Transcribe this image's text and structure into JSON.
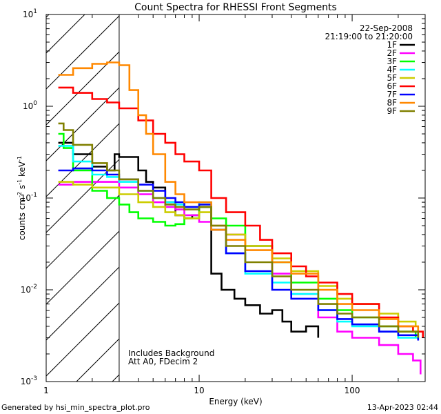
{
  "chart_data": {
    "type": "line",
    "title": "Count Spectra for RHESSI Front Segments",
    "xlabel": "Energy (keV)",
    "ylabel": "counts cm-2 s-1 keV-1",
    "xscale": "log",
    "yscale": "log",
    "xlim": [
      1,
      300
    ],
    "ylim": [
      0.001,
      10
    ],
    "x_ticks": [
      {
        "value": 1,
        "label": "1"
      },
      {
        "value": 10,
        "label": "10"
      },
      {
        "value": 100,
        "label": "100"
      }
    ],
    "y_ticks": [
      {
        "value": 10,
        "base": "10",
        "exp": "1"
      },
      {
        "value": 1,
        "base": "10",
        "exp": "0"
      },
      {
        "value": 0.1,
        "base": "10",
        "exp": "-1"
      },
      {
        "value": 0.01,
        "base": "10",
        "exp": "-2"
      },
      {
        "value": 0.001,
        "base": "10",
        "exp": "-3"
      }
    ],
    "hatched_region_max_energy": 3,
    "date": "22-Sep-2008",
    "time_range": "21:19:00 to 21:20:00",
    "annotations": [
      "Includes Background",
      "Att A0, FDecim 2"
    ],
    "series": [
      {
        "name": "1F",
        "color": "#000000",
        "points": [
          [
            1.2,
            0.4
          ],
          [
            1.5,
            0.3
          ],
          [
            2.0,
            0.22
          ],
          [
            2.5,
            0.2
          ],
          [
            2.8,
            0.3
          ],
          [
            3.0,
            0.28
          ],
          [
            4.0,
            0.2
          ],
          [
            4.5,
            0.15
          ],
          [
            5.0,
            0.13
          ],
          [
            6.0,
            0.09
          ],
          [
            7.0,
            0.065
          ],
          [
            8.0,
            0.06
          ],
          [
            9.0,
            0.065
          ],
          [
            10.0,
            0.08
          ],
          [
            12.0,
            0.015
          ],
          [
            14.0,
            0.01
          ],
          [
            17.0,
            0.008
          ],
          [
            20.0,
            0.0068
          ],
          [
            25.0,
            0.0055
          ],
          [
            30.0,
            0.006
          ],
          [
            35.0,
            0.0045
          ],
          [
            40.0,
            0.0035
          ],
          [
            50.0,
            0.004
          ],
          [
            60.0,
            0.003
          ]
        ]
      },
      {
        "name": "2F",
        "color": "#ff00ff",
        "points": [
          [
            1.2,
            0.14
          ],
          [
            1.5,
            0.15
          ],
          [
            2.0,
            0.15
          ],
          [
            3.0,
            0.13
          ],
          [
            4.0,
            0.11
          ],
          [
            5.0,
            0.09
          ],
          [
            6.0,
            0.08
          ],
          [
            7.0,
            0.075
          ],
          [
            8.0,
            0.065
          ],
          [
            10.0,
            0.055
          ],
          [
            12.0,
            0.05
          ],
          [
            15.0,
            0.04
          ],
          [
            20.0,
            0.03
          ],
          [
            30.0,
            0.015
          ],
          [
            40.0,
            0.009
          ],
          [
            60.0,
            0.005
          ],
          [
            80.0,
            0.0035
          ],
          [
            100.0,
            0.003
          ],
          [
            150.0,
            0.0025
          ],
          [
            200.0,
            0.002
          ],
          [
            250.0,
            0.0017
          ],
          [
            280.0,
            0.0012
          ]
        ]
      },
      {
        "name": "3F",
        "color": "#00ff00",
        "points": [
          [
            1.2,
            0.5
          ],
          [
            1.3,
            0.35
          ],
          [
            1.5,
            0.2
          ],
          [
            2.0,
            0.12
          ],
          [
            2.5,
            0.1
          ],
          [
            3.0,
            0.085
          ],
          [
            3.5,
            0.07
          ],
          [
            4.0,
            0.06
          ],
          [
            5.0,
            0.055
          ],
          [
            6.0,
            0.05
          ],
          [
            7.0,
            0.052
          ],
          [
            8.0,
            0.06
          ],
          [
            10.0,
            0.08
          ],
          [
            12.0,
            0.06
          ],
          [
            15.0,
            0.05
          ],
          [
            20.0,
            0.03
          ],
          [
            30.0,
            0.02
          ],
          [
            40.0,
            0.012
          ],
          [
            60.0,
            0.008
          ],
          [
            80.0,
            0.006
          ],
          [
            100.0,
            0.005
          ],
          [
            150.0,
            0.004
          ],
          [
            200.0,
            0.0035
          ],
          [
            260.0,
            0.003
          ]
        ]
      },
      {
        "name": "4F",
        "color": "#00ffff",
        "points": [
          [
            1.2,
            0.37
          ],
          [
            1.5,
            0.25
          ],
          [
            2.0,
            0.18
          ],
          [
            2.5,
            0.17
          ],
          [
            3.0,
            0.15
          ],
          [
            4.0,
            0.12
          ],
          [
            5.0,
            0.1
          ],
          [
            6.0,
            0.09
          ],
          [
            7.0,
            0.085
          ],
          [
            8.0,
            0.08
          ],
          [
            10.0,
            0.09
          ],
          [
            12.0,
            0.045
          ],
          [
            15.0,
            0.025
          ],
          [
            20.0,
            0.015
          ],
          [
            30.0,
            0.012
          ],
          [
            40.0,
            0.009
          ],
          [
            60.0,
            0.006
          ],
          [
            80.0,
            0.0045
          ],
          [
            100.0,
            0.004
          ],
          [
            150.0,
            0.0035
          ],
          [
            200.0,
            0.003
          ],
          [
            270.0,
            0.0028
          ]
        ]
      },
      {
        "name": "5F",
        "color": "#cccc00",
        "points": [
          [
            1.2,
            0.15
          ],
          [
            1.5,
            0.14
          ],
          [
            2.0,
            0.13
          ],
          [
            3.0,
            0.11
          ],
          [
            4.0,
            0.09
          ],
          [
            5.0,
            0.08
          ],
          [
            6.0,
            0.07
          ],
          [
            7.0,
            0.065
          ],
          [
            8.0,
            0.06
          ],
          [
            10.0,
            0.07
          ],
          [
            12.0,
            0.05
          ],
          [
            15.0,
            0.04
          ],
          [
            20.0,
            0.03
          ],
          [
            30.0,
            0.022
          ],
          [
            40.0,
            0.016
          ],
          [
            60.0,
            0.011
          ],
          [
            80.0,
            0.008
          ],
          [
            100.0,
            0.007
          ],
          [
            150.0,
            0.0055
          ],
          [
            200.0,
            0.0045
          ],
          [
            260.0,
            0.004
          ]
        ]
      },
      {
        "name": "6F",
        "color": "#ff0000",
        "points": [
          [
            1.2,
            1.6
          ],
          [
            1.5,
            1.4
          ],
          [
            2.0,
            1.2
          ],
          [
            2.5,
            1.1
          ],
          [
            3.0,
            0.95
          ],
          [
            4.0,
            0.7
          ],
          [
            5.0,
            0.5
          ],
          [
            6.0,
            0.4
          ],
          [
            7.0,
            0.3
          ],
          [
            8.0,
            0.25
          ],
          [
            10.0,
            0.2
          ],
          [
            12.0,
            0.1
          ],
          [
            15.0,
            0.07
          ],
          [
            20.0,
            0.05
          ],
          [
            25.0,
            0.035
          ],
          [
            30.0,
            0.025
          ],
          [
            40.0,
            0.018
          ],
          [
            50.0,
            0.014
          ],
          [
            60.0,
            0.012
          ],
          [
            80.0,
            0.009
          ],
          [
            100.0,
            0.007
          ],
          [
            150.0,
            0.005
          ],
          [
            200.0,
            0.004
          ],
          [
            250.0,
            0.0035
          ],
          [
            290.0,
            0.003
          ]
        ]
      },
      {
        "name": "7F",
        "color": "#0000ff",
        "points": [
          [
            1.2,
            0.2
          ],
          [
            1.5,
            0.21
          ],
          [
            2.0,
            0.2
          ],
          [
            2.5,
            0.18
          ],
          [
            3.0,
            0.16
          ],
          [
            4.0,
            0.14
          ],
          [
            5.0,
            0.12
          ],
          [
            6.0,
            0.1
          ],
          [
            7.0,
            0.09
          ],
          [
            8.0,
            0.08
          ],
          [
            10.0,
            0.085
          ],
          [
            12.0,
            0.045
          ],
          [
            15.0,
            0.025
          ],
          [
            20.0,
            0.016
          ],
          [
            30.0,
            0.01
          ],
          [
            40.0,
            0.008
          ],
          [
            60.0,
            0.006
          ],
          [
            80.0,
            0.0048
          ],
          [
            100.0,
            0.0042
          ],
          [
            150.0,
            0.0035
          ],
          [
            200.0,
            0.0032
          ],
          [
            270.0,
            0.0028
          ]
        ]
      },
      {
        "name": "8F",
        "color": "#ff8800",
        "points": [
          [
            1.2,
            2.2
          ],
          [
            1.5,
            2.6
          ],
          [
            2.0,
            2.9
          ],
          [
            2.5,
            3.0
          ],
          [
            3.0,
            2.8
          ],
          [
            3.5,
            1.5
          ],
          [
            4.0,
            0.8
          ],
          [
            4.5,
            0.5
          ],
          [
            5.0,
            0.3
          ],
          [
            6.0,
            0.15
          ],
          [
            7.0,
            0.11
          ],
          [
            8.0,
            0.09
          ],
          [
            10.0,
            0.09
          ],
          [
            12.0,
            0.045
          ],
          [
            15.0,
            0.035
          ],
          [
            20.0,
            0.027
          ],
          [
            30.0,
            0.02
          ],
          [
            40.0,
            0.015
          ],
          [
            60.0,
            0.01
          ],
          [
            80.0,
            0.007
          ],
          [
            100.0,
            0.006
          ],
          [
            150.0,
            0.0048
          ],
          [
            200.0,
            0.004
          ],
          [
            270.0,
            0.0035
          ]
        ]
      },
      {
        "name": "9F",
        "color": "#808000",
        "points": [
          [
            1.2,
            0.65
          ],
          [
            1.3,
            0.55
          ],
          [
            1.5,
            0.38
          ],
          [
            2.0,
            0.24
          ],
          [
            2.5,
            0.2
          ],
          [
            3.0,
            0.16
          ],
          [
            4.0,
            0.12
          ],
          [
            5.0,
            0.1
          ],
          [
            6.0,
            0.085
          ],
          [
            7.0,
            0.08
          ],
          [
            8.0,
            0.075
          ],
          [
            10.0,
            0.08
          ],
          [
            12.0,
            0.05
          ],
          [
            15.0,
            0.03
          ],
          [
            20.0,
            0.02
          ],
          [
            30.0,
            0.014
          ],
          [
            40.0,
            0.01
          ],
          [
            60.0,
            0.007
          ],
          [
            80.0,
            0.0055
          ],
          [
            100.0,
            0.005
          ],
          [
            150.0,
            0.004
          ],
          [
            200.0,
            0.0035
          ],
          [
            270.0,
            0.003
          ]
        ]
      }
    ]
  },
  "footer": {
    "generated_by": "Generated by hsi_min_spectra_plot.pro",
    "timestamp": "13-Apr-2023 02:44"
  }
}
